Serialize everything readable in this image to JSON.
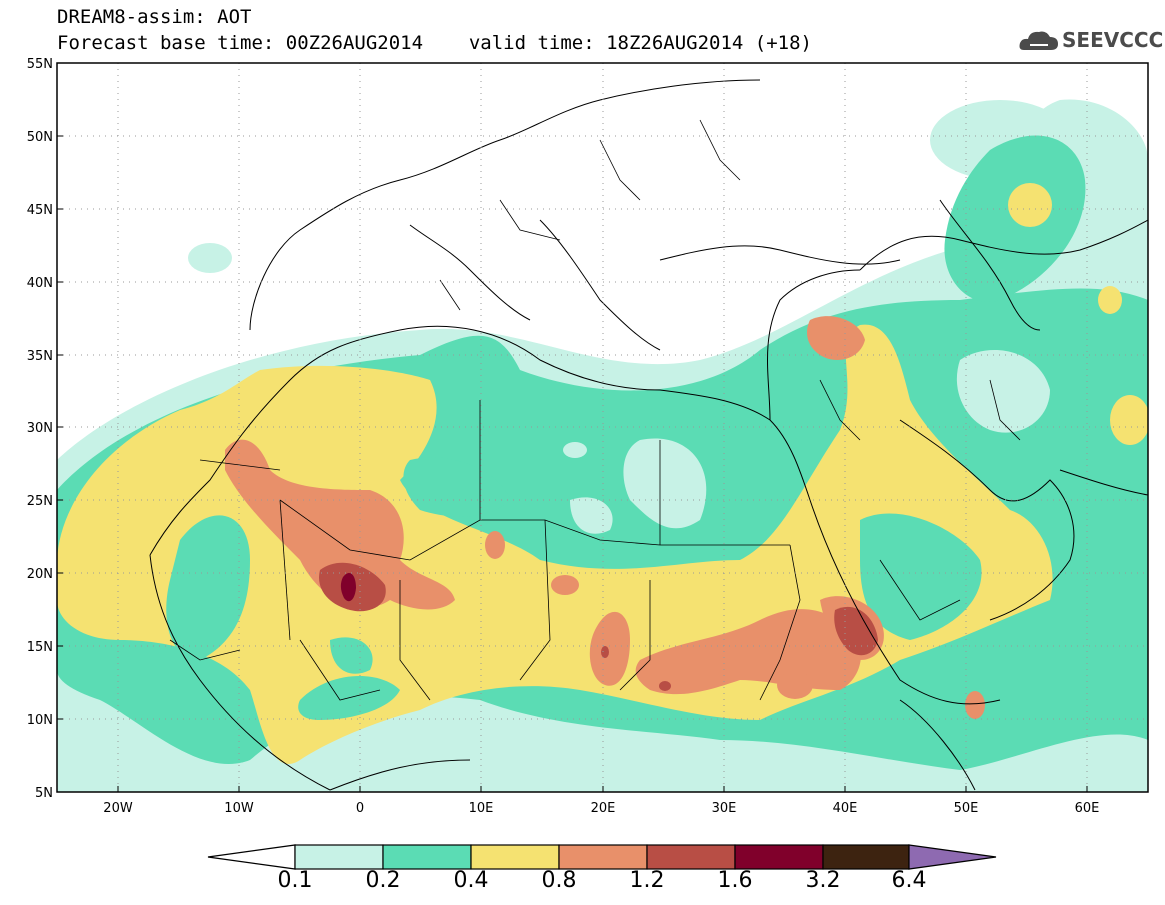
{
  "header": {
    "title": "DREAM8-assim: AOT",
    "base_time_label": "Forecast base time: 00Z26AUG2014",
    "valid_time_label": "valid time: 18Z26AUG2014 (+18)"
  },
  "logo": {
    "text": "SEEVCCC",
    "icon": "cloud-icon"
  },
  "map": {
    "lat_labels": [
      "55N",
      "50N",
      "45N",
      "40N",
      "35N",
      "30N",
      "25N",
      "20N",
      "15N",
      "10N",
      "5N"
    ],
    "lon_labels": [
      "20W",
      "10W",
      "0",
      "10E",
      "20E",
      "30E",
      "40E",
      "50E",
      "60E"
    ],
    "lat_range": [
      5,
      55
    ],
    "lon_range": [
      -25,
      65
    ]
  },
  "colorbar": {
    "labels": [
      "0.1",
      "0.2",
      "0.4",
      "0.8",
      "1.2",
      "1.6",
      "3.2",
      "6.4"
    ],
    "colors": [
      "#ffffff",
      "#c7f2e6",
      "#5bdcb4",
      "#f5e271",
      "#e8906a",
      "#b84e45",
      "#80002b",
      "#3d2310",
      "#8e6ab1"
    ]
  },
  "palette": {
    "c1": "#c7f2e6",
    "c2": "#5bdcb4",
    "c3": "#f5e271",
    "c4": "#e8906a",
    "c5": "#b84e45",
    "c6": "#80002b"
  }
}
